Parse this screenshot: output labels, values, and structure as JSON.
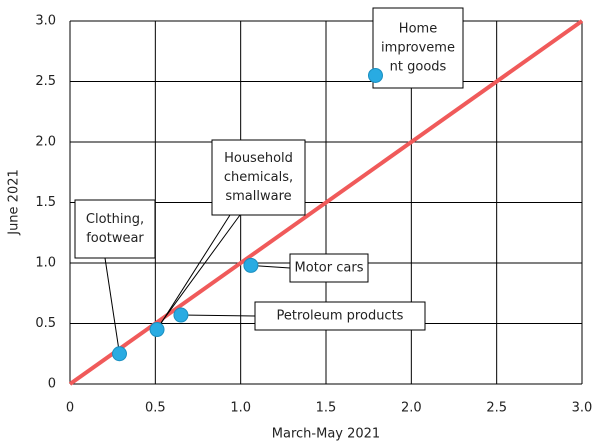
{
  "chart_data": {
    "type": "scatter",
    "xlabel": "March-May 2021",
    "ylabel": "June 2021",
    "x": [
      0.29,
      0.51,
      0.65,
      1.06,
      1.79
    ],
    "y": [
      0.25,
      0.45,
      0.57,
      0.98,
      2.55
    ],
    "labels": [
      [
        "Clothing,",
        "footwear"
      ],
      [
        "Household",
        "chemicals,",
        "smallware"
      ],
      [
        "Petroleum products"
      ],
      [
        "Motor cars"
      ],
      [
        "Home",
        "improveme",
        "nt goods"
      ]
    ],
    "color": "#29abe2",
    "reference_line": {
      "x": [
        0,
        3
      ],
      "y": [
        0,
        3
      ],
      "color": "#f05a5a"
    },
    "xlim": [
      0,
      3
    ],
    "ylim": [
      0,
      3
    ],
    "xticks": [
      0,
      0.5,
      {
        "value": 1,
        "label": "1.0"
      },
      1.5,
      {
        "value": 2,
        "label": "2.0"
      },
      2.5,
      {
        "value": 3,
        "label": "3.0"
      }
    ],
    "yticks": [
      0,
      0.5,
      {
        "value": 1,
        "label": "1.0"
      },
      1.5,
      {
        "value": 2,
        "label": "2.0"
      },
      2.5,
      {
        "value": 3,
        "label": "3.0"
      }
    ],
    "grid": true
  }
}
